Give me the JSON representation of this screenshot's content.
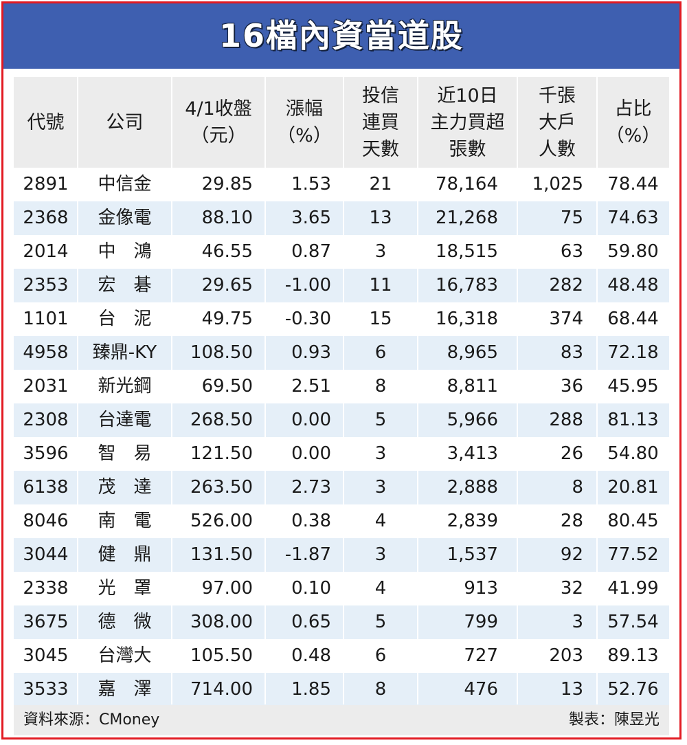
{
  "title": "16檔內資當道股",
  "colors": {
    "frame": "#e21a22",
    "title_bg": "#3e5fb0",
    "header_bg": "#ececec",
    "alt_row": "#e5eff8"
  },
  "chart_data": {
    "type": "table",
    "columns": [
      {
        "lines": [
          "代號"
        ]
      },
      {
        "lines": [
          "公司"
        ]
      },
      {
        "lines": [
          "4/1收盤",
          "（元）"
        ]
      },
      {
        "lines": [
          "漲幅",
          "（%）"
        ]
      },
      {
        "lines": [
          "投信",
          "連買",
          "天數"
        ]
      },
      {
        "lines": [
          "近10日",
          "主力買超",
          "張數"
        ]
      },
      {
        "lines": [
          "千張",
          "大戶",
          "人數"
        ]
      },
      {
        "lines": [
          "占比",
          "（%）"
        ]
      }
    ],
    "rows": [
      [
        "2891",
        "中信金",
        "29.85",
        "1.53",
        "21",
        "78,164",
        "1,025",
        "78.44"
      ],
      [
        "2368",
        "金像電",
        "88.10",
        "3.65",
        "13",
        "21,268",
        "75",
        "74.63"
      ],
      [
        "2014",
        "中　鴻",
        "46.55",
        "0.87",
        "3",
        "18,515",
        "63",
        "59.80"
      ],
      [
        "2353",
        "宏　碁",
        "29.65",
        "-1.00",
        "11",
        "16,783",
        "282",
        "48.48"
      ],
      [
        "1101",
        "台　泥",
        "49.75",
        "-0.30",
        "15",
        "16,318",
        "374",
        "68.44"
      ],
      [
        "4958",
        "臻鼎-KY",
        "108.50",
        "0.93",
        "6",
        "8,965",
        "83",
        "72.18"
      ],
      [
        "2031",
        "新光鋼",
        "69.50",
        "2.51",
        "8",
        "8,811",
        "36",
        "45.95"
      ],
      [
        "2308",
        "台達電",
        "268.50",
        "0.00",
        "5",
        "5,966",
        "288",
        "81.13"
      ],
      [
        "3596",
        "智　易",
        "121.50",
        "0.00",
        "3",
        "3,413",
        "26",
        "54.80"
      ],
      [
        "6138",
        "茂　達",
        "263.50",
        "2.73",
        "3",
        "2,888",
        "8",
        "20.81"
      ],
      [
        "8046",
        "南　電",
        "526.00",
        "0.38",
        "4",
        "2,839",
        "28",
        "80.45"
      ],
      [
        "3044",
        "健　鼎",
        "131.50",
        "-1.87",
        "3",
        "1,537",
        "92",
        "77.52"
      ],
      [
        "2338",
        "光　罩",
        "97.00",
        "0.10",
        "4",
        "913",
        "32",
        "41.99"
      ],
      [
        "3675",
        "德　微",
        "308.00",
        "0.65",
        "5",
        "799",
        "3",
        "57.54"
      ],
      [
        "3045",
        "台灣大",
        "105.50",
        "0.48",
        "6",
        "727",
        "203",
        "89.13"
      ],
      [
        "3533",
        "嘉　澤",
        "714.00",
        "1.85",
        "8",
        "476",
        "13",
        "52.76"
      ]
    ]
  },
  "footer": {
    "source": "資料來源：CMoney",
    "maker": "製表：陳昱光"
  }
}
